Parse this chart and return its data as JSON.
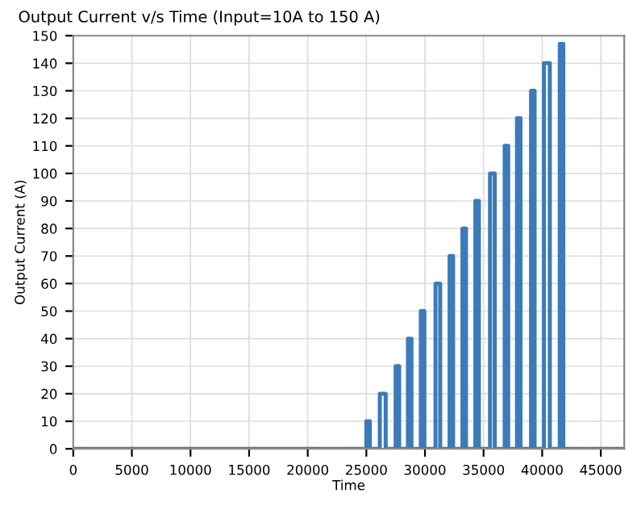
{
  "chart_data": {
    "type": "line",
    "title": "Output Current v/s Time (Input=10A to 150 A)",
    "xlabel": "Time",
    "ylabel": "Output Current (A)",
    "x": [
      0,
      25000,
      25000,
      25300,
      25300,
      26150,
      26150,
      26650,
      26650,
      27500,
      27500,
      27800,
      27800,
      28550,
      28550,
      28850,
      28850,
      29650,
      29650,
      29950,
      29950,
      30900,
      30900,
      31300,
      31300,
      32100,
      32100,
      32400,
      32400,
      33200,
      33200,
      33500,
      33500,
      34300,
      34300,
      34600,
      34600,
      35550,
      35550,
      35950,
      35950,
      36800,
      36800,
      37100,
      37100,
      37850,
      37850,
      38150,
      38150,
      39050,
      39050,
      39350,
      39350,
      40150,
      40150,
      40650,
      40650,
      41500,
      41500,
      41800,
      41800,
      47000
    ],
    "series": [
      {
        "color": "#3b7bb8",
        "values": [
          0,
          0,
          10,
          10,
          0,
          0,
          20,
          20,
          0,
          0,
          30,
          30,
          0,
          0,
          40,
          40,
          0,
          0,
          50,
          50,
          0,
          0,
          60,
          60,
          0,
          0,
          70,
          70,
          0,
          0,
          80,
          80,
          0,
          0,
          90,
          90,
          0,
          0,
          100,
          100,
          0,
          0,
          110,
          110,
          0,
          0,
          120,
          120,
          0,
          0,
          130,
          130,
          0,
          0,
          140,
          140,
          0,
          0,
          147,
          147,
          0,
          0
        ]
      }
    ],
    "xlim": [
      0,
      47000
    ],
    "ylim": [
      0,
      150
    ],
    "xticks": [
      0,
      5000,
      10000,
      15000,
      20000,
      25000,
      30000,
      35000,
      40000,
      45000
    ],
    "yticks": [
      0,
      10,
      20,
      30,
      40,
      50,
      60,
      70,
      80,
      90,
      100,
      110,
      120,
      130,
      140,
      150
    ],
    "grid": true,
    "marker": "none",
    "line_style": "solid"
  }
}
